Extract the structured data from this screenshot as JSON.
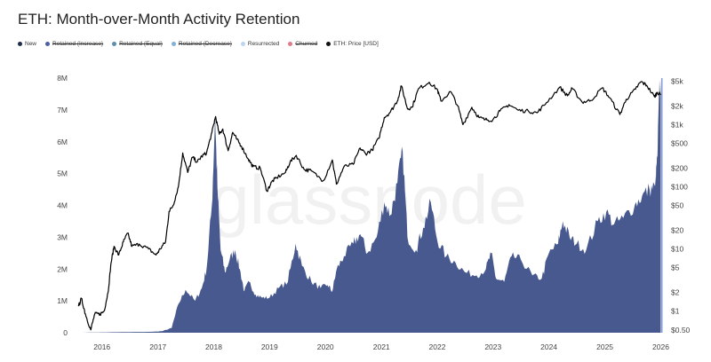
{
  "title": "ETH: Month-over-Month Activity Retention",
  "watermark": "glassnode",
  "legend": [
    {
      "label": "New",
      "color": "#1f2d4d",
      "hidden": false
    },
    {
      "label": "Retained (Increase)",
      "color": "#4a5fa8",
      "hidden": true
    },
    {
      "label": "Retained (Equal)",
      "color": "#5b8fb0",
      "hidden": true
    },
    {
      "label": "Retained (Decrease)",
      "color": "#7fb2d8",
      "hidden": true
    },
    {
      "label": "Resurrected",
      "color": "#bcd6ef",
      "hidden": false
    },
    {
      "label": "Churned",
      "color": "#e07a8a",
      "hidden": true
    },
    {
      "label": "ETH: Price [USD]",
      "color": "#111111",
      "hidden": false
    }
  ],
  "colors": {
    "area": "#48598f",
    "price": "#000000",
    "bar": "#8a9fd6"
  },
  "chart_data": {
    "type": "area",
    "title": "ETH: Month-over-Month Activity Retention",
    "x_ticks": [
      "2016",
      "2017",
      "2018",
      "2019",
      "2020",
      "2021",
      "2022",
      "2023",
      "2024",
      "2025",
      "2026"
    ],
    "y_left": {
      "ticks": [
        "0",
        "1M",
        "2M",
        "3M",
        "4M",
        "5M",
        "6M",
        "7M",
        "8M"
      ],
      "range": [
        0,
        8000000
      ]
    },
    "y_right": {
      "scale": "log",
      "ticks": [
        "$0.50",
        "$1",
        "$2",
        "$5",
        "$10",
        "$20",
        "$50",
        "$100",
        "$200",
        "$500",
        "$1k",
        "$2k",
        "$5k"
      ],
      "values": [
        0.5,
        1,
        2,
        5,
        10,
        20,
        50,
        100,
        200,
        500,
        1000,
        2000,
        5000
      ],
      "range": [
        0.45,
        5600
      ]
    },
    "x_range": [
      "2015-07-30",
      "2026-01-10"
    ],
    "series": [
      {
        "name": "New",
        "axis": "left",
        "points": [
          [
            "2015-08-01",
            0
          ],
          [
            "2016-01-01",
            10000
          ],
          [
            "2016-06-01",
            20000
          ],
          [
            "2016-12-01",
            30000
          ],
          [
            "2017-02-01",
            50000
          ],
          [
            "2017-04-01",
            150000
          ],
          [
            "2017-05-15",
            900000
          ],
          [
            "2017-07-01",
            1350000
          ],
          [
            "2017-09-01",
            1000000
          ],
          [
            "2017-10-15",
            1400000
          ],
          [
            "2017-11-15",
            2000000
          ],
          [
            "2017-12-20",
            4000000
          ],
          [
            "2018-01-10",
            6800000
          ],
          [
            "2018-01-25",
            4600000
          ],
          [
            "2018-02-15",
            2600000
          ],
          [
            "2018-03-15",
            1900000
          ],
          [
            "2018-04-15",
            2300000
          ],
          [
            "2018-05-20",
            2600000
          ],
          [
            "2018-06-20",
            2000000
          ],
          [
            "2018-07-20",
            1300000
          ],
          [
            "2018-08-20",
            1600000
          ],
          [
            "2018-10-01",
            1200000
          ],
          [
            "2018-11-15",
            1100000
          ],
          [
            "2019-01-01",
            1100000
          ],
          [
            "2019-03-01",
            1400000
          ],
          [
            "2019-05-01",
            1600000
          ],
          [
            "2019-06-20",
            2800000
          ],
          [
            "2019-08-01",
            2100000
          ],
          [
            "2019-10-01",
            1600000
          ],
          [
            "2019-12-01",
            1400000
          ],
          [
            "2020-01-15",
            1500000
          ],
          [
            "2020-02-15",
            1300000
          ],
          [
            "2020-03-15",
            2000000
          ],
          [
            "2020-05-01",
            2400000
          ],
          [
            "2020-07-01",
            2800000
          ],
          [
            "2020-08-15",
            3100000
          ],
          [
            "2020-10-01",
            2500000
          ],
          [
            "2020-12-01",
            3000000
          ],
          [
            "2021-01-20",
            4100000
          ],
          [
            "2021-03-01",
            3700000
          ],
          [
            "2021-04-15",
            4700000
          ],
          [
            "2021-05-20",
            5700000
          ],
          [
            "2021-06-20",
            3000000
          ],
          [
            "2021-08-15",
            2600000
          ],
          [
            "2021-10-01",
            3300000
          ],
          [
            "2021-11-20",
            4100000
          ],
          [
            "2022-01-01",
            2900000
          ],
          [
            "2022-03-01",
            2400000
          ],
          [
            "2022-05-01",
            2200000
          ],
          [
            "2022-07-01",
            1900000
          ],
          [
            "2022-09-15",
            1800000
          ],
          [
            "2022-11-15",
            2000000
          ],
          [
            "2022-12-20",
            2500000
          ],
          [
            "2023-01-20",
            1700000
          ],
          [
            "2023-03-15",
            1600000
          ],
          [
            "2023-05-01",
            2400000
          ],
          [
            "2023-07-01",
            2300000
          ],
          [
            "2023-09-15",
            1800000
          ],
          [
            "2023-11-15",
            1700000
          ],
          [
            "2024-01-01",
            2500000
          ],
          [
            "2024-03-01",
            2800000
          ],
          [
            "2024-04-01",
            3500000
          ],
          [
            "2024-05-15",
            3000000
          ],
          [
            "2024-07-01",
            2800000
          ],
          [
            "2024-09-01",
            2600000
          ],
          [
            "2024-11-15",
            3500000
          ],
          [
            "2025-01-10",
            3800000
          ],
          [
            "2025-03-01",
            3400000
          ],
          [
            "2025-05-01",
            3600000
          ],
          [
            "2025-07-15",
            4000000
          ],
          [
            "2025-09-01",
            4300000
          ],
          [
            "2025-10-20",
            4500000
          ],
          [
            "2025-11-25",
            4600000
          ],
          [
            "2025-12-10",
            5500000
          ],
          [
            "2025-12-22",
            7500000
          ],
          [
            "2026-01-01",
            8000000
          ]
        ]
      },
      {
        "name": "ETH: Price [USD]",
        "axis": "right",
        "points": [
          [
            "2015-08-01",
            1.2
          ],
          [
            "2015-08-20",
            1.6
          ],
          [
            "2015-09-15",
            0.9
          ],
          [
            "2015-10-20",
            0.5
          ],
          [
            "2015-11-15",
            0.9
          ],
          [
            "2015-12-20",
            0.9
          ],
          [
            "2016-01-15",
            1.0
          ],
          [
            "2016-02-10",
            2.0
          ],
          [
            "2016-03-01",
            6.0
          ],
          [
            "2016-03-20",
            11.0
          ],
          [
            "2016-04-20",
            8.0
          ],
          [
            "2016-05-20",
            13.0
          ],
          [
            "2016-06-18",
            18.0
          ],
          [
            "2016-07-15",
            11.0
          ],
          [
            "2016-09-01",
            12.0
          ],
          [
            "2016-11-01",
            10.0
          ],
          [
            "2016-12-20",
            8.0
          ],
          [
            "2017-01-15",
            10.0
          ],
          [
            "2017-02-20",
            13.0
          ],
          [
            "2017-03-15",
            40.0
          ],
          [
            "2017-04-10",
            50.0
          ],
          [
            "2017-05-15",
            100.0
          ],
          [
            "2017-06-12",
            350.0
          ],
          [
            "2017-07-15",
            170.0
          ],
          [
            "2017-08-15",
            300.0
          ],
          [
            "2017-09-15",
            250.0
          ],
          [
            "2017-10-15",
            310.0
          ],
          [
            "2017-11-15",
            350.0
          ],
          [
            "2017-12-20",
            750.0
          ],
          [
            "2018-01-13",
            1350.0
          ],
          [
            "2018-02-06",
            700.0
          ],
          [
            "2018-03-01",
            850.0
          ],
          [
            "2018-04-05",
            380.0
          ],
          [
            "2018-05-05",
            750.0
          ],
          [
            "2018-06-01",
            580.0
          ],
          [
            "2018-07-01",
            450.0
          ],
          [
            "2018-08-15",
            280.0
          ],
          [
            "2018-09-15",
            210.0
          ],
          [
            "2018-11-01",
            200.0
          ],
          [
            "2018-12-15",
            85.0
          ],
          [
            "2019-01-15",
            120.0
          ],
          [
            "2019-02-15",
            140.0
          ],
          [
            "2019-04-15",
            170.0
          ],
          [
            "2019-05-15",
            250.0
          ],
          [
            "2019-06-25",
            320.0
          ],
          [
            "2019-08-15",
            190.0
          ],
          [
            "2019-10-01",
            180.0
          ],
          [
            "2019-12-18",
            125.0
          ],
          [
            "2020-02-15",
            270.0
          ],
          [
            "2020-03-13",
            110.0
          ],
          [
            "2020-05-01",
            210.0
          ],
          [
            "2020-07-01",
            230.0
          ],
          [
            "2020-08-15",
            420.0
          ],
          [
            "2020-09-20",
            340.0
          ],
          [
            "2020-11-01",
            390.0
          ],
          [
            "2020-12-15",
            600.0
          ],
          [
            "2021-01-20",
            1300.0
          ],
          [
            "2021-03-01",
            1600.0
          ],
          [
            "2021-04-15",
            2400.0
          ],
          [
            "2021-05-12",
            4200.0
          ],
          [
            "2021-06-20",
            1800.0
          ],
          [
            "2021-07-20",
            1900.0
          ],
          [
            "2021-09-01",
            3800.0
          ],
          [
            "2021-11-10",
            4800.0
          ],
          [
            "2022-01-01",
            3700.0
          ],
          [
            "2022-01-25",
            2400.0
          ],
          [
            "2022-03-30",
            3400.0
          ],
          [
            "2022-05-15",
            2000.0
          ],
          [
            "2022-06-18",
            1000.0
          ],
          [
            "2022-08-15",
            1900.0
          ],
          [
            "2022-10-01",
            1300.0
          ],
          [
            "2022-11-10",
            1200.0
          ],
          [
            "2022-12-31",
            1200.0
          ],
          [
            "2023-02-15",
            1650.0
          ],
          [
            "2023-04-15",
            2100.0
          ],
          [
            "2023-06-15",
            1700.0
          ],
          [
            "2023-08-20",
            1650.0
          ],
          [
            "2023-10-15",
            1550.0
          ],
          [
            "2023-12-15",
            2250.0
          ],
          [
            "2024-03-12",
            4000.0
          ],
          [
            "2024-05-01",
            2900.0
          ],
          [
            "2024-06-01",
            3800.0
          ],
          [
            "2024-08-05",
            2300.0
          ],
          [
            "2024-10-01",
            2450.0
          ],
          [
            "2024-12-15",
            3900.0
          ],
          [
            "2025-02-01",
            2700.0
          ],
          [
            "2025-04-09",
            1450.0
          ],
          [
            "2025-05-20",
            2550.0
          ],
          [
            "2025-07-20",
            3700.0
          ],
          [
            "2025-08-24",
            4900.0
          ],
          [
            "2025-10-01",
            4300.0
          ],
          [
            "2025-11-21",
            2800.0
          ],
          [
            "2025-12-10",
            3300.0
          ],
          [
            "2026-01-01",
            3000.0
          ]
        ]
      }
    ],
    "grid": false,
    "legend_position": "top-left"
  }
}
